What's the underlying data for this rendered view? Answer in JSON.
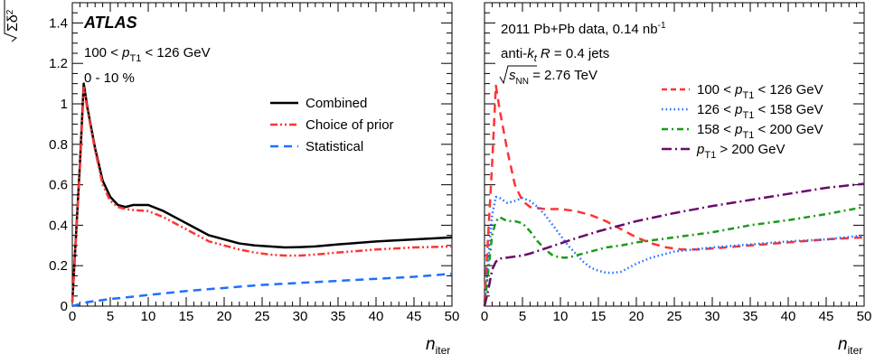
{
  "chart_data": [
    {
      "type": "line",
      "ylabel": "√Σδ²",
      "xlabel": "n_iter",
      "xlim": [
        0,
        50
      ],
      "ylim": [
        0,
        1.5
      ],
      "xticks": [
        0,
        5,
        10,
        15,
        20,
        25,
        30,
        35,
        40,
        45,
        50
      ],
      "yticks": [
        0,
        0.2,
        0.4,
        0.6,
        0.8,
        1,
        1.2,
        1.4
      ],
      "ytick_labels": [
        "0",
        "0.2",
        "0.4",
        "0.6",
        "0.8",
        "1",
        "1.2",
        "1.4"
      ],
      "annotations": [
        "ATLAS",
        "100 < p_T1 < 126 GeV",
        "0 - 10 %"
      ],
      "legend_position": "top-right",
      "series": [
        {
          "name": "Combined",
          "color": "#000000",
          "dash": "solid",
          "x": [
            0,
            1,
            1.5,
            2,
            3,
            4,
            5,
            6,
            7,
            8,
            9,
            10,
            12,
            14,
            16,
            18,
            20,
            22,
            24,
            26,
            28,
            30,
            32,
            35,
            40,
            45,
            50
          ],
          "y": [
            0.02,
            0.7,
            1.1,
            0.98,
            0.78,
            0.62,
            0.54,
            0.5,
            0.49,
            0.5,
            0.5,
            0.5,
            0.47,
            0.43,
            0.39,
            0.35,
            0.33,
            0.31,
            0.3,
            0.295,
            0.29,
            0.292,
            0.295,
            0.305,
            0.32,
            0.33,
            0.34
          ]
        },
        {
          "name": "Choice of prior",
          "color": "#ff3333",
          "dash": "dashdotdot",
          "x": [
            0,
            1,
            1.5,
            2,
            3,
            4,
            5,
            6,
            7,
            8,
            10,
            12,
            14,
            16,
            18,
            20,
            22,
            24,
            26,
            28,
            30,
            32,
            35,
            40,
            45,
            50
          ],
          "y": [
            0.02,
            0.68,
            1.08,
            0.97,
            0.77,
            0.6,
            0.52,
            0.49,
            0.48,
            0.475,
            0.47,
            0.44,
            0.4,
            0.36,
            0.32,
            0.3,
            0.28,
            0.265,
            0.255,
            0.25,
            0.25,
            0.255,
            0.265,
            0.28,
            0.29,
            0.295
          ]
        },
        {
          "name": "Statistical",
          "color": "#1f6fff",
          "dash": "dashed",
          "x": [
            0,
            1,
            2,
            5,
            10,
            15,
            20,
            25,
            30,
            35,
            40,
            45,
            50
          ],
          "y": [
            0,
            0.01,
            0.02,
            0.035,
            0.055,
            0.075,
            0.09,
            0.105,
            0.115,
            0.125,
            0.135,
            0.145,
            0.16
          ]
        }
      ]
    },
    {
      "type": "line",
      "xlabel": "n_iter",
      "xlim": [
        0,
        50
      ],
      "ylim": [
        0,
        1.5
      ],
      "xticks": [
        0,
        5,
        10,
        15,
        20,
        25,
        30,
        35,
        40,
        45,
        50
      ],
      "annotations": [
        "2011 Pb+Pb data, 0.14 nb⁻¹",
        "anti-k_t R = 0.4 jets",
        "√s_NN = 2.76 TeV"
      ],
      "legend_position": "right",
      "series": [
        {
          "name": "100 < p_T1 < 126 GeV",
          "color": "#ff3333",
          "dash": "dashed",
          "x": [
            0,
            1,
            1.5,
            2,
            3,
            4,
            5,
            6,
            8,
            10,
            12,
            14,
            16,
            18,
            20,
            22,
            24,
            26,
            28,
            30,
            35,
            40,
            45,
            50
          ],
          "y": [
            0.02,
            0.7,
            1.09,
            0.97,
            0.77,
            0.6,
            0.52,
            0.49,
            0.48,
            0.48,
            0.47,
            0.45,
            0.42,
            0.38,
            0.34,
            0.31,
            0.29,
            0.28,
            0.28,
            0.285,
            0.3,
            0.315,
            0.33,
            0.34
          ]
        },
        {
          "name": "126 < p_T1 < 158 GeV",
          "color": "#1f6fff",
          "dash": "dotted",
          "x": [
            0,
            1,
            1.5,
            2,
            3,
            4,
            5,
            6,
            7,
            8,
            9,
            10,
            11,
            12,
            13,
            14,
            15,
            16,
            17,
            18,
            19,
            20,
            22,
            25,
            30,
            35,
            40,
            45,
            50
          ],
          "y": [
            0,
            0.45,
            0.54,
            0.535,
            0.51,
            0.52,
            0.535,
            0.52,
            0.49,
            0.45,
            0.4,
            0.35,
            0.3,
            0.26,
            0.22,
            0.19,
            0.175,
            0.165,
            0.165,
            0.17,
            0.19,
            0.21,
            0.24,
            0.27,
            0.29,
            0.305,
            0.32,
            0.33,
            0.35
          ]
        },
        {
          "name": "158 < p_T1 < 200 GeV",
          "color": "#1a9a1a",
          "dash": "dashdot",
          "x": [
            0,
            1,
            1.5,
            2,
            3,
            4,
            5,
            6,
            7,
            8,
            9,
            10,
            11,
            12,
            14,
            16,
            18,
            20,
            25,
            30,
            35,
            40,
            45,
            50
          ],
          "y": [
            0,
            0.35,
            0.42,
            0.44,
            0.42,
            0.42,
            0.41,
            0.37,
            0.32,
            0.28,
            0.25,
            0.24,
            0.24,
            0.25,
            0.27,
            0.29,
            0.3,
            0.315,
            0.34,
            0.365,
            0.4,
            0.425,
            0.455,
            0.49
          ]
        },
        {
          "name": "p_T1 > 200 GeV",
          "color": "#6a0a6a",
          "dash": "longdashdot",
          "x": [
            0,
            0.5,
            1,
            1.5,
            2,
            3,
            4,
            5,
            6,
            8,
            10,
            12,
            15,
            20,
            25,
            30,
            35,
            40,
            45,
            50
          ],
          "y": [
            0,
            0.08,
            0.18,
            0.22,
            0.235,
            0.24,
            0.245,
            0.25,
            0.26,
            0.285,
            0.31,
            0.335,
            0.37,
            0.42,
            0.46,
            0.495,
            0.525,
            0.555,
            0.585,
            0.605
          ]
        }
      ]
    }
  ]
}
